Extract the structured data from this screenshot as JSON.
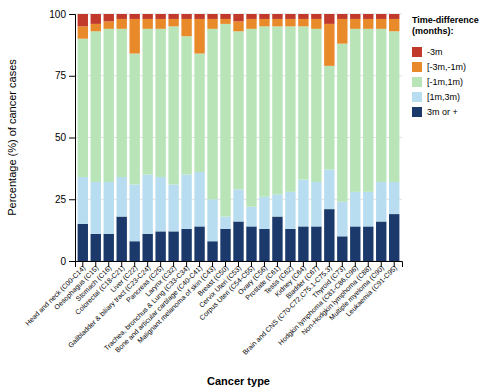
{
  "chart_data": {
    "type": "bar",
    "stacked": true,
    "xlabel": "Cancer type",
    "ylabel": "Percentage (%) of cancer cases",
    "categories": [
      "Head and neck (C00-C14)",
      "Oesophagus (C15)",
      "Stomach (C16)",
      "Colorectal (C18-C21)",
      "Liver (C22)",
      "Gallbladder & biliary tract (C23-C24)",
      "Pancreas (C25)",
      "Larynx (C32)",
      "Trachea, bronchus & Lung (C33-C34)",
      "Bone and articular cartilage (C40-C41)",
      "Malignant melanoma of skin (C43)",
      "Breast (C50)",
      "Cervix Uteri (C53)",
      "Corpus Uteri (C54-C55)",
      "Ovary (C56)",
      "Prostate (C61)",
      "Testis (C62)",
      "Kidney (C64)",
      "Bladder (C67)",
      "Brain and CNS (C70-C72,C75.1-C75.3)",
      "Thyroid (C73)",
      "Hodgkin lymphoma (C81-C86,C96)",
      "Non-Hodgkin lymphoma (C88)",
      "Multiple myeloma (C90)",
      "Leukaemia (C91-C95)"
    ],
    "series": [
      {
        "name": "3m or +",
        "color": "#1b3a6b",
        "values": [
          15,
          11,
          11,
          18,
          8,
          11,
          12,
          12,
          13,
          14,
          8,
          13,
          16,
          14,
          13,
          18,
          13,
          14,
          14,
          21,
          10,
          14,
          14,
          16,
          19
        ]
      },
      {
        "name": "[1m,3m)",
        "color": "#b8ddf0",
        "values": [
          19,
          21,
          21,
          16,
          23,
          24,
          22,
          19,
          22,
          22,
          17,
          5,
          13,
          8,
          13,
          9,
          15,
          19,
          18,
          16,
          14,
          14,
          14,
          16,
          13
        ]
      },
      {
        "name": "[-1m,1m)",
        "color": "#b8e4b8",
        "values": [
          56,
          61,
          62,
          60,
          53,
          59,
          60,
          64,
          56,
          48,
          69,
          78,
          64,
          72,
          69,
          68,
          67,
          62,
          62,
          42,
          64,
          66,
          66,
          62,
          61
        ]
      },
      {
        "name": "[-3m,-1m)",
        "color": "#e8892a",
        "values": [
          5,
          3,
          3,
          4,
          14,
          4,
          4,
          3,
          7,
          14,
          4,
          2,
          4,
          4,
          3,
          3,
          3,
          3,
          4,
          17,
          10,
          4,
          4,
          4,
          5
        ]
      },
      {
        "name": "-3m",
        "color": "#c1392b",
        "values": [
          5,
          4,
          3,
          2,
          2,
          2,
          2,
          2,
          2,
          2,
          2,
          2,
          3,
          2,
          2,
          2,
          2,
          2,
          2,
          4,
          2,
          2,
          2,
          2,
          2
        ]
      }
    ],
    "legend_title": "Time-difference\n(months):",
    "legend": "upper right",
    "ylim": [
      0,
      100
    ],
    "yticks": [
      0,
      25,
      50,
      75,
      100
    ],
    "grid": true
  }
}
